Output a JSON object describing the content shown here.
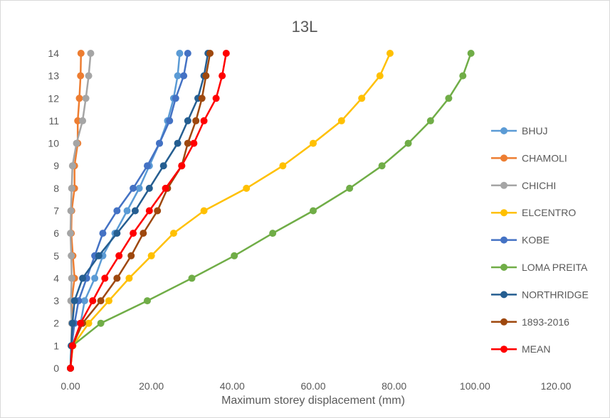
{
  "chart_data": {
    "type": "line",
    "title": "13L",
    "xlabel": "Maximum storey displacement (mm)",
    "ylabel": "",
    "xlim": [
      0,
      120
    ],
    "ylim": [
      0,
      14
    ],
    "x_ticks": [
      "0.00",
      "20.00",
      "40.00",
      "60.00",
      "80.00",
      "100.00",
      "120.00"
    ],
    "y_ticks": [
      "0",
      "1",
      "2",
      "3",
      "4",
      "5",
      "6",
      "7",
      "8",
      "9",
      "10",
      "11",
      "12",
      "13",
      "14"
    ],
    "grid": false,
    "legend_position": "right",
    "series": [
      {
        "name": "BHUJ",
        "color": "#5b9bd5",
        "x": [
          0,
          0.5,
          2.5,
          3.5,
          6,
          8,
          11,
          14,
          17,
          19.5,
          22,
          24,
          25.5,
          26.5,
          27
        ],
        "y": [
          0,
          1,
          2,
          3,
          4,
          5,
          6,
          7,
          8,
          9,
          10,
          11,
          12,
          13,
          14
        ]
      },
      {
        "name": "CHAMOLI",
        "color": "#ed7d31",
        "x": [
          0,
          0.2,
          0.5,
          0.3,
          1,
          0.6,
          0.2,
          0.3,
          1,
          1,
          1.8,
          1.8,
          2.2,
          2.5,
          2.6
        ],
        "y": [
          0,
          1,
          2,
          3,
          4,
          5,
          6,
          7,
          8,
          9,
          10,
          11,
          12,
          13,
          14
        ]
      },
      {
        "name": "CHICHI",
        "color": "#a5a5a5",
        "x": [
          0,
          0.2,
          0.3,
          0.1,
          0.3,
          0.2,
          0,
          0.1,
          0.3,
          0.5,
          1.5,
          3,
          3.8,
          4.5,
          5
        ],
        "y": [
          0,
          1,
          2,
          3,
          4,
          5,
          6,
          7,
          8,
          9,
          10,
          11,
          12,
          13,
          14
        ]
      },
      {
        "name": "ELCENTRO",
        "color": "#ffc000",
        "x": [
          0,
          0.6,
          4.5,
          9.5,
          14.5,
          20,
          25.5,
          33,
          43.5,
          52.5,
          60,
          67,
          72,
          76.5,
          79
        ],
        "y": [
          0,
          1,
          2,
          3,
          4,
          5,
          6,
          7,
          8,
          9,
          10,
          11,
          12,
          13,
          14
        ]
      },
      {
        "name": "KOBE",
        "color": "#4472c4",
        "x": [
          0,
          0.3,
          1,
          2,
          4,
          6,
          8,
          11.5,
          15.5,
          19,
          22,
          24.5,
          26,
          28,
          29
        ],
        "y": [
          0,
          1,
          2,
          3,
          4,
          5,
          6,
          7,
          8,
          9,
          10,
          11,
          12,
          13,
          14
        ]
      },
      {
        "name": "LOMA PREITA",
        "color": "#70ad47",
        "x": [
          0,
          0.5,
          7.5,
          19,
          30,
          40.5,
          50,
          60,
          69,
          77,
          83.5,
          89,
          93.5,
          97,
          99
        ],
        "y": [
          0,
          1,
          2,
          3,
          4,
          5,
          6,
          7,
          8,
          9,
          10,
          11,
          12,
          13,
          14
        ]
      },
      {
        "name": "NORTHRIDGE",
        "color": "#255e91",
        "x": [
          0,
          0.2,
          0.5,
          1,
          3,
          7,
          11.5,
          16,
          19.5,
          23,
          26.5,
          29,
          31.5,
          33,
          34
        ],
        "y": [
          0,
          1,
          2,
          3,
          4,
          5,
          6,
          7,
          8,
          9,
          10,
          11,
          12,
          13,
          14
        ]
      },
      {
        "name": "1893-2016",
        "color": "#9e480e",
        "x": [
          0,
          0.5,
          3,
          7.5,
          11.5,
          15,
          18,
          21.5,
          24,
          27.5,
          29,
          31,
          32.5,
          33.5,
          34.5
        ],
        "y": [
          0,
          1,
          2,
          3,
          4,
          5,
          6,
          7,
          8,
          9,
          10,
          11,
          12,
          13,
          14
        ]
      },
      {
        "name": "MEAN",
        "color": "#ff0000",
        "x": [
          0,
          0.5,
          2.5,
          5.5,
          8.5,
          12,
          15.5,
          19.5,
          23.5,
          27.5,
          30.5,
          33,
          36,
          37.5,
          38.5
        ],
        "y": [
          0,
          1,
          2,
          3,
          4,
          5,
          6,
          7,
          8,
          9,
          10,
          11,
          12,
          13,
          14
        ]
      }
    ]
  }
}
